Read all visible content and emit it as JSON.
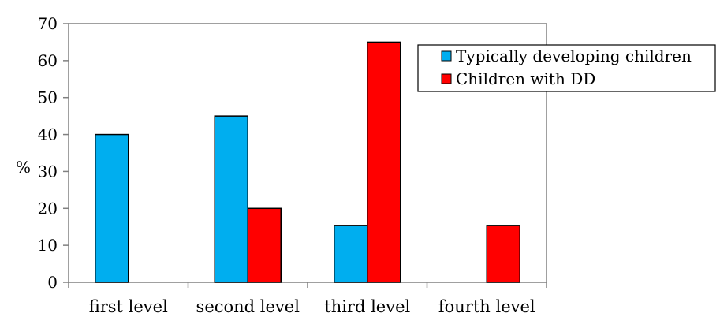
{
  "chart_data": {
    "type": "bar",
    "categories": [
      "first level",
      "second level",
      "third level",
      "fourth level"
    ],
    "series": [
      {
        "name": "Typically developing children",
        "values": [
          40,
          45,
          15.4,
          0
        ],
        "color": "#00AEEF"
      },
      {
        "name": "Children with DD",
        "values": [
          0,
          20,
          65,
          15.4
        ],
        "color": "#FF0000"
      }
    ],
    "ylabel": "%",
    "ylim": [
      0,
      70
    ],
    "yticks": [
      0,
      10,
      20,
      30,
      40,
      50,
      60,
      70
    ],
    "grid": false,
    "legend_position": "top-right"
  }
}
